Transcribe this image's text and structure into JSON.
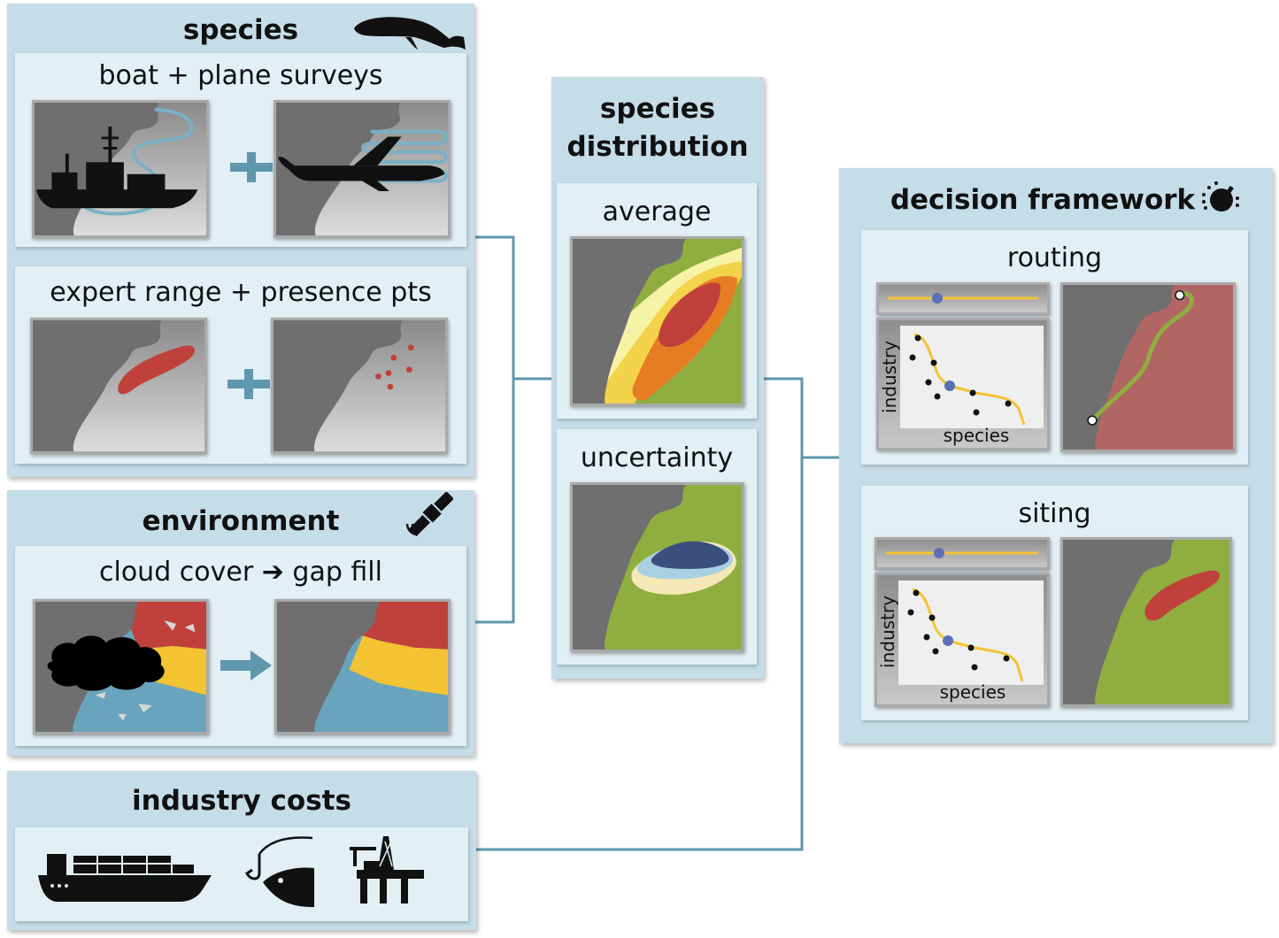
{
  "species_panel": {
    "title": "species",
    "surveys": {
      "label": "boat + plane surveys"
    },
    "expert": {
      "label": "expert range + presence pts"
    },
    "icon": "whale-icon"
  },
  "environment_panel": {
    "title": "environment",
    "cloud": {
      "label_left": "cloud cover",
      "label_right": "gap fill"
    },
    "icon": "satellite-icon"
  },
  "industry_panel": {
    "title": "industry costs",
    "icons": [
      "cargo-ship-icon",
      "fishing-hook-icon",
      "oil-rig-icon"
    ]
  },
  "distribution_panel": {
    "title_line1": "species",
    "title_line2": "distribution",
    "average": {
      "label": "average"
    },
    "uncertainty": {
      "label": "uncertainty"
    }
  },
  "decision_panel": {
    "title": "decision framework",
    "icon": "dial-icon",
    "routing": {
      "label": "routing",
      "xlabel": "species",
      "ylabel": "industry"
    },
    "siting": {
      "label": "siting",
      "xlabel": "species",
      "ylabel": "industry"
    }
  },
  "colors": {
    "panel": "#c5dde8",
    "inner": "#e2eff5",
    "connector": "#5f97ad",
    "land": "#6f6f6f",
    "sea_green": "#8fae3f",
    "red": "#c0413b",
    "orange": "#e67d22",
    "yellow": "#f3c332",
    "blue": "#68a4bd",
    "navy": "#3a4f7d"
  }
}
